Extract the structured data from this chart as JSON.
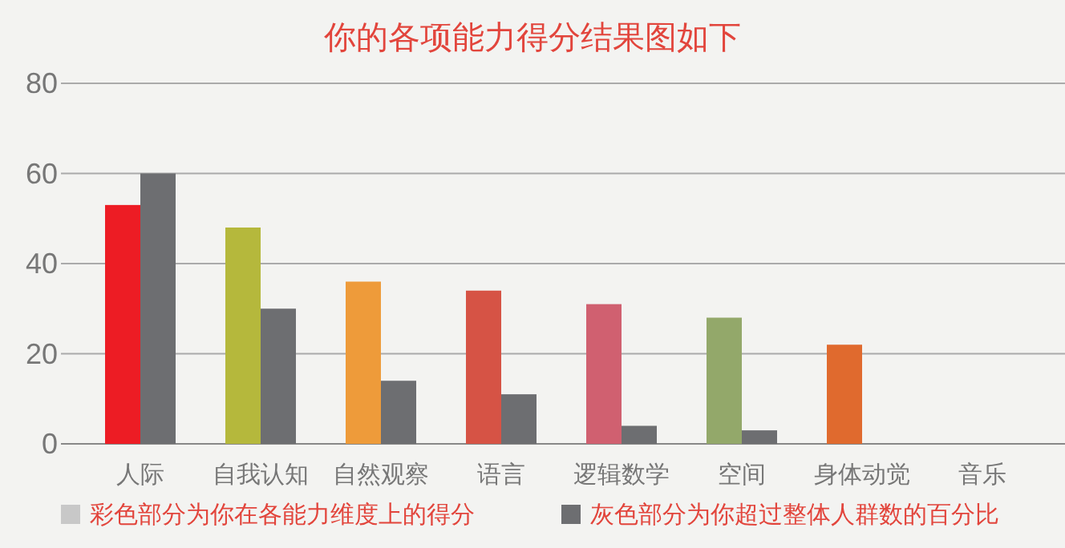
{
  "chart_data": {
    "type": "bar",
    "title": "你的各项能力得分结果图如下",
    "categories": [
      "人际",
      "自我认知",
      "自然观察",
      "语言",
      "逻辑数学",
      "空间",
      "身体动觉",
      "音乐"
    ],
    "series": [
      {
        "name": "彩色部分为你在各能力维度上的得分",
        "color": "#c8c8c8",
        "colors": [
          "#ed1c24",
          "#b5b83c",
          "#ee9b3a",
          "#d65345",
          "#d06070",
          "#93a86a",
          "#e06a2e",
          null
        ],
        "values": [
          53,
          48,
          36,
          34,
          31,
          28,
          22,
          null
        ]
      },
      {
        "name": "灰色部分为你超过整体人群数的百分比",
        "color": "#6d6e71",
        "values": [
          60,
          30,
          14,
          11,
          4,
          3,
          null,
          null
        ]
      }
    ],
    "ylim": [
      0,
      80
    ],
    "yticks": [
      0,
      20,
      40,
      60,
      80
    ],
    "grid": "y",
    "legend": "bottom"
  }
}
